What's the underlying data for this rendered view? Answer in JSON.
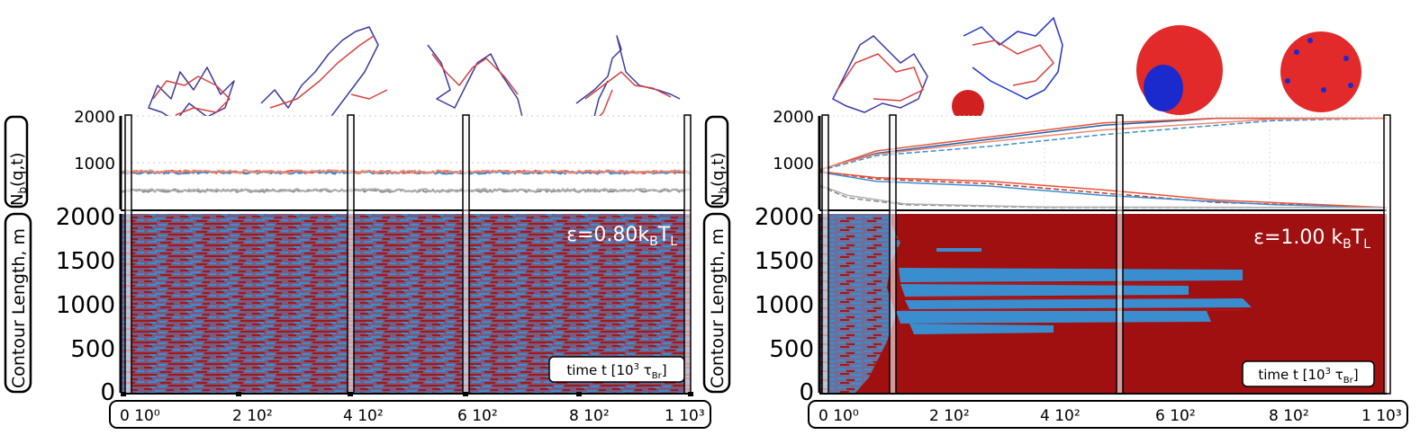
{
  "panels": [
    {
      "id": "left",
      "epsilon_label": "ε=0.80k",
      "epsilon_sub": "B",
      "epsilon_T": "T",
      "epsilon_T_sub": "L",
      "top_axis_label": "N",
      "top_axis_sub": "b",
      "top_axis_rest": "(q,t)",
      "bottom_axis_label": "Contour Length, m",
      "time_label": "time t [10",
      "time_sup": "3",
      "time_tau": " τ",
      "time_tau_sub": "Br",
      "time_close": "]",
      "x_tick_labels": [
        "0 10⁰",
        "2 10²",
        "4 10²",
        "6 10²",
        "8 10²",
        "1 10³"
      ]
    },
    {
      "id": "right",
      "epsilon_label": "ε=1.00 k",
      "epsilon_sub": "B",
      "epsilon_T": "T",
      "epsilon_T_sub": "L",
      "top_axis_label": "N",
      "top_axis_sub": "b",
      "top_axis_rest": "(q,t)",
      "bottom_axis_label": "Contour Length, m",
      "time_label": "time t [10",
      "time_sup": "3",
      "time_tau": " τ",
      "time_tau_sub": "Br",
      "time_close": "]",
      "x_tick_labels": [
        "0 10⁰",
        "2 10²",
        "4 10²",
        "6 10²",
        "8 10²",
        "1 10³"
      ]
    }
  ],
  "chart_data": [
    {
      "type": "line",
      "panel": "left-top",
      "y_ticks": [
        1000,
        2000
      ],
      "ylim": [
        0,
        2000
      ],
      "xlim": [
        0,
        1000
      ],
      "series": [
        {
          "color": "#e8533a",
          "level": 800
        },
        {
          "color": "#3a8ed0",
          "level": 790
        },
        {
          "color": "#f08a70",
          "level": 810
        },
        {
          "color": "#8a8a8a",
          "level": 400
        },
        {
          "color": "#b0b0b0",
          "level": 410
        }
      ]
    },
    {
      "type": "heatmap",
      "panel": "left-bottom",
      "y_ticks": [
        0,
        500,
        1000,
        1500,
        2000
      ],
      "ylim": [
        0,
        2000
      ],
      "xlim": [
        0,
        1000
      ],
      "colors": [
        "#a01818",
        "#3a8ed0"
      ]
    },
    {
      "type": "line",
      "panel": "right-top",
      "y_ticks": [
        1000,
        2000
      ],
      "ylim": [
        0,
        2000
      ],
      "xlim": [
        0,
        1000
      ],
      "series": [
        {
          "color": "#1f5fa8",
          "points": [
            [
              0,
              850
            ],
            [
              100,
              1200
            ],
            [
              300,
              1500
            ],
            [
              500,
              1800
            ],
            [
              700,
              1950
            ],
            [
              1000,
              1950
            ]
          ]
        },
        {
          "color": "#3a8ed0",
          "points": [
            [
              0,
              830
            ],
            [
              100,
              1150
            ],
            [
              300,
              1350
            ],
            [
              500,
              1600
            ],
            [
              800,
              1900
            ],
            [
              1000,
              1950
            ]
          ]
        },
        {
          "color": "#e8533a",
          "points": [
            [
              0,
              840
            ],
            [
              100,
              1250
            ],
            [
              300,
              1550
            ],
            [
              500,
              1850
            ],
            [
              700,
              1950
            ],
            [
              1000,
              1950
            ]
          ]
        },
        {
          "color": "#f08a70",
          "points": [
            [
              0,
              860
            ],
            [
              100,
              1180
            ],
            [
              300,
              1450
            ],
            [
              500,
              1700
            ],
            [
              800,
              1930
            ],
            [
              1000,
              1950
            ]
          ]
        },
        {
          "color": "#c0392b",
          "points": [
            [
              0,
              820
            ],
            [
              100,
              650
            ],
            [
              300,
              550
            ],
            [
              500,
              350
            ],
            [
              700,
              150
            ],
            [
              1000,
              40
            ]
          ]
        },
        {
          "color": "#3a8ed0",
          "points": [
            [
              0,
              800
            ],
            [
              100,
              600
            ],
            [
              300,
              500
            ],
            [
              500,
              300
            ],
            [
              800,
              100
            ],
            [
              1000,
              40
            ]
          ]
        },
        {
          "color": "#e8533a",
          "points": [
            [
              0,
              810
            ],
            [
              100,
              680
            ],
            [
              300,
              600
            ],
            [
              500,
              420
            ],
            [
              700,
              200
            ],
            [
              1000,
              40
            ]
          ]
        },
        {
          "color": "#8a8a8a",
          "points": [
            [
              0,
              500
            ],
            [
              50,
              250
            ],
            [
              150,
              100
            ],
            [
              400,
              40
            ],
            [
              1000,
              40
            ]
          ]
        },
        {
          "color": "#b0b0b0",
          "points": [
            [
              0,
              520
            ],
            [
              50,
              300
            ],
            [
              150,
              120
            ],
            [
              400,
              50
            ],
            [
              1000,
              40
            ]
          ]
        }
      ]
    },
    {
      "type": "heatmap",
      "panel": "right-bottom",
      "y_ticks": [
        0,
        500,
        1000,
        1500,
        2000
      ],
      "ylim": [
        0,
        2000
      ],
      "xlim": [
        0,
        1000
      ],
      "colors": [
        "#a01818",
        "#3a8ed0"
      ]
    }
  ]
}
